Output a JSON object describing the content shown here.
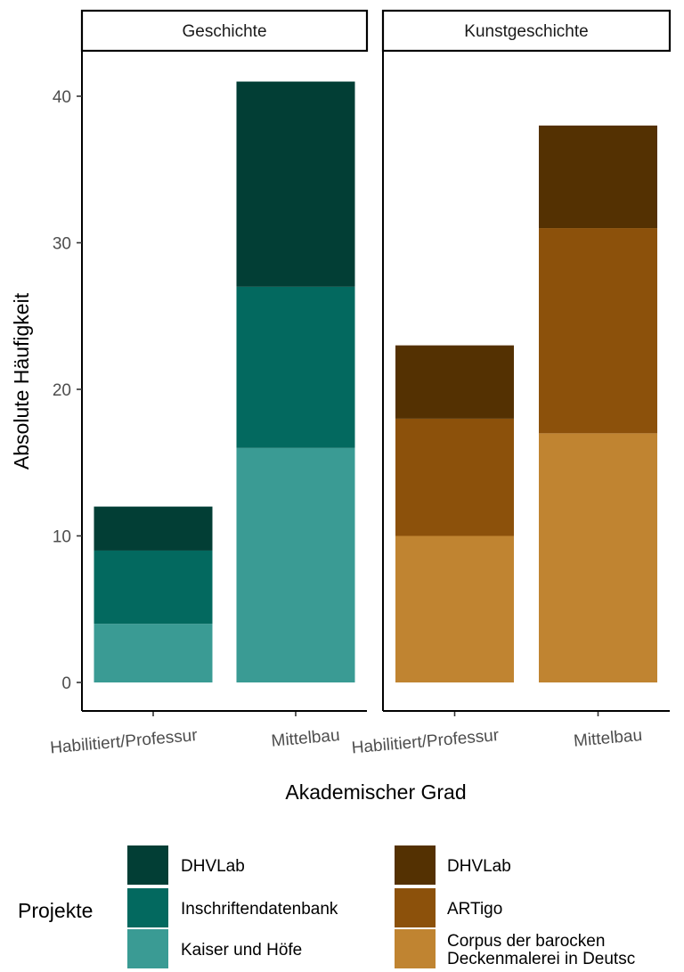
{
  "chart_data": {
    "type": "bar",
    "stacked": true,
    "ylabel": "Absolute Häufigkeit",
    "xlabel": "Akademischer Grad",
    "ylim": [
      0,
      43
    ],
    "yticks": [
      0,
      10,
      20,
      30,
      40
    ],
    "categories": [
      "Habilitiert/Professur",
      "Mittelbau"
    ],
    "legend": {
      "title": "Projekte",
      "placement": "bottom"
    },
    "facets": [
      {
        "name": "Geschichte",
        "series": [
          {
            "name": "Kaiser und Höfe",
            "values": [
              4,
              16
            ],
            "color": "#3a9b94"
          },
          {
            "name": "Inschriftendatenbank",
            "values": [
              5,
              11
            ],
            "color": "#03695f"
          },
          {
            "name": "DHVLab",
            "values": [
              3,
              14
            ],
            "color": "#023e35"
          }
        ]
      },
      {
        "name": "Kunstgeschichte",
        "series": [
          {
            "name": "Corpus der barocken Deckenmalerei in Deutsc",
            "label_lines": [
              "Corpus der barocken",
              "Deckenmalerei in Deutsc"
            ],
            "values": [
              10,
              17
            ],
            "color": "#c08431"
          },
          {
            "name": "ARTigo",
            "values": [
              8,
              14
            ],
            "color": "#8c510b"
          },
          {
            "name": "DHVLab",
            "values": [
              5,
              7
            ],
            "color": "#543102"
          }
        ]
      }
    ]
  }
}
